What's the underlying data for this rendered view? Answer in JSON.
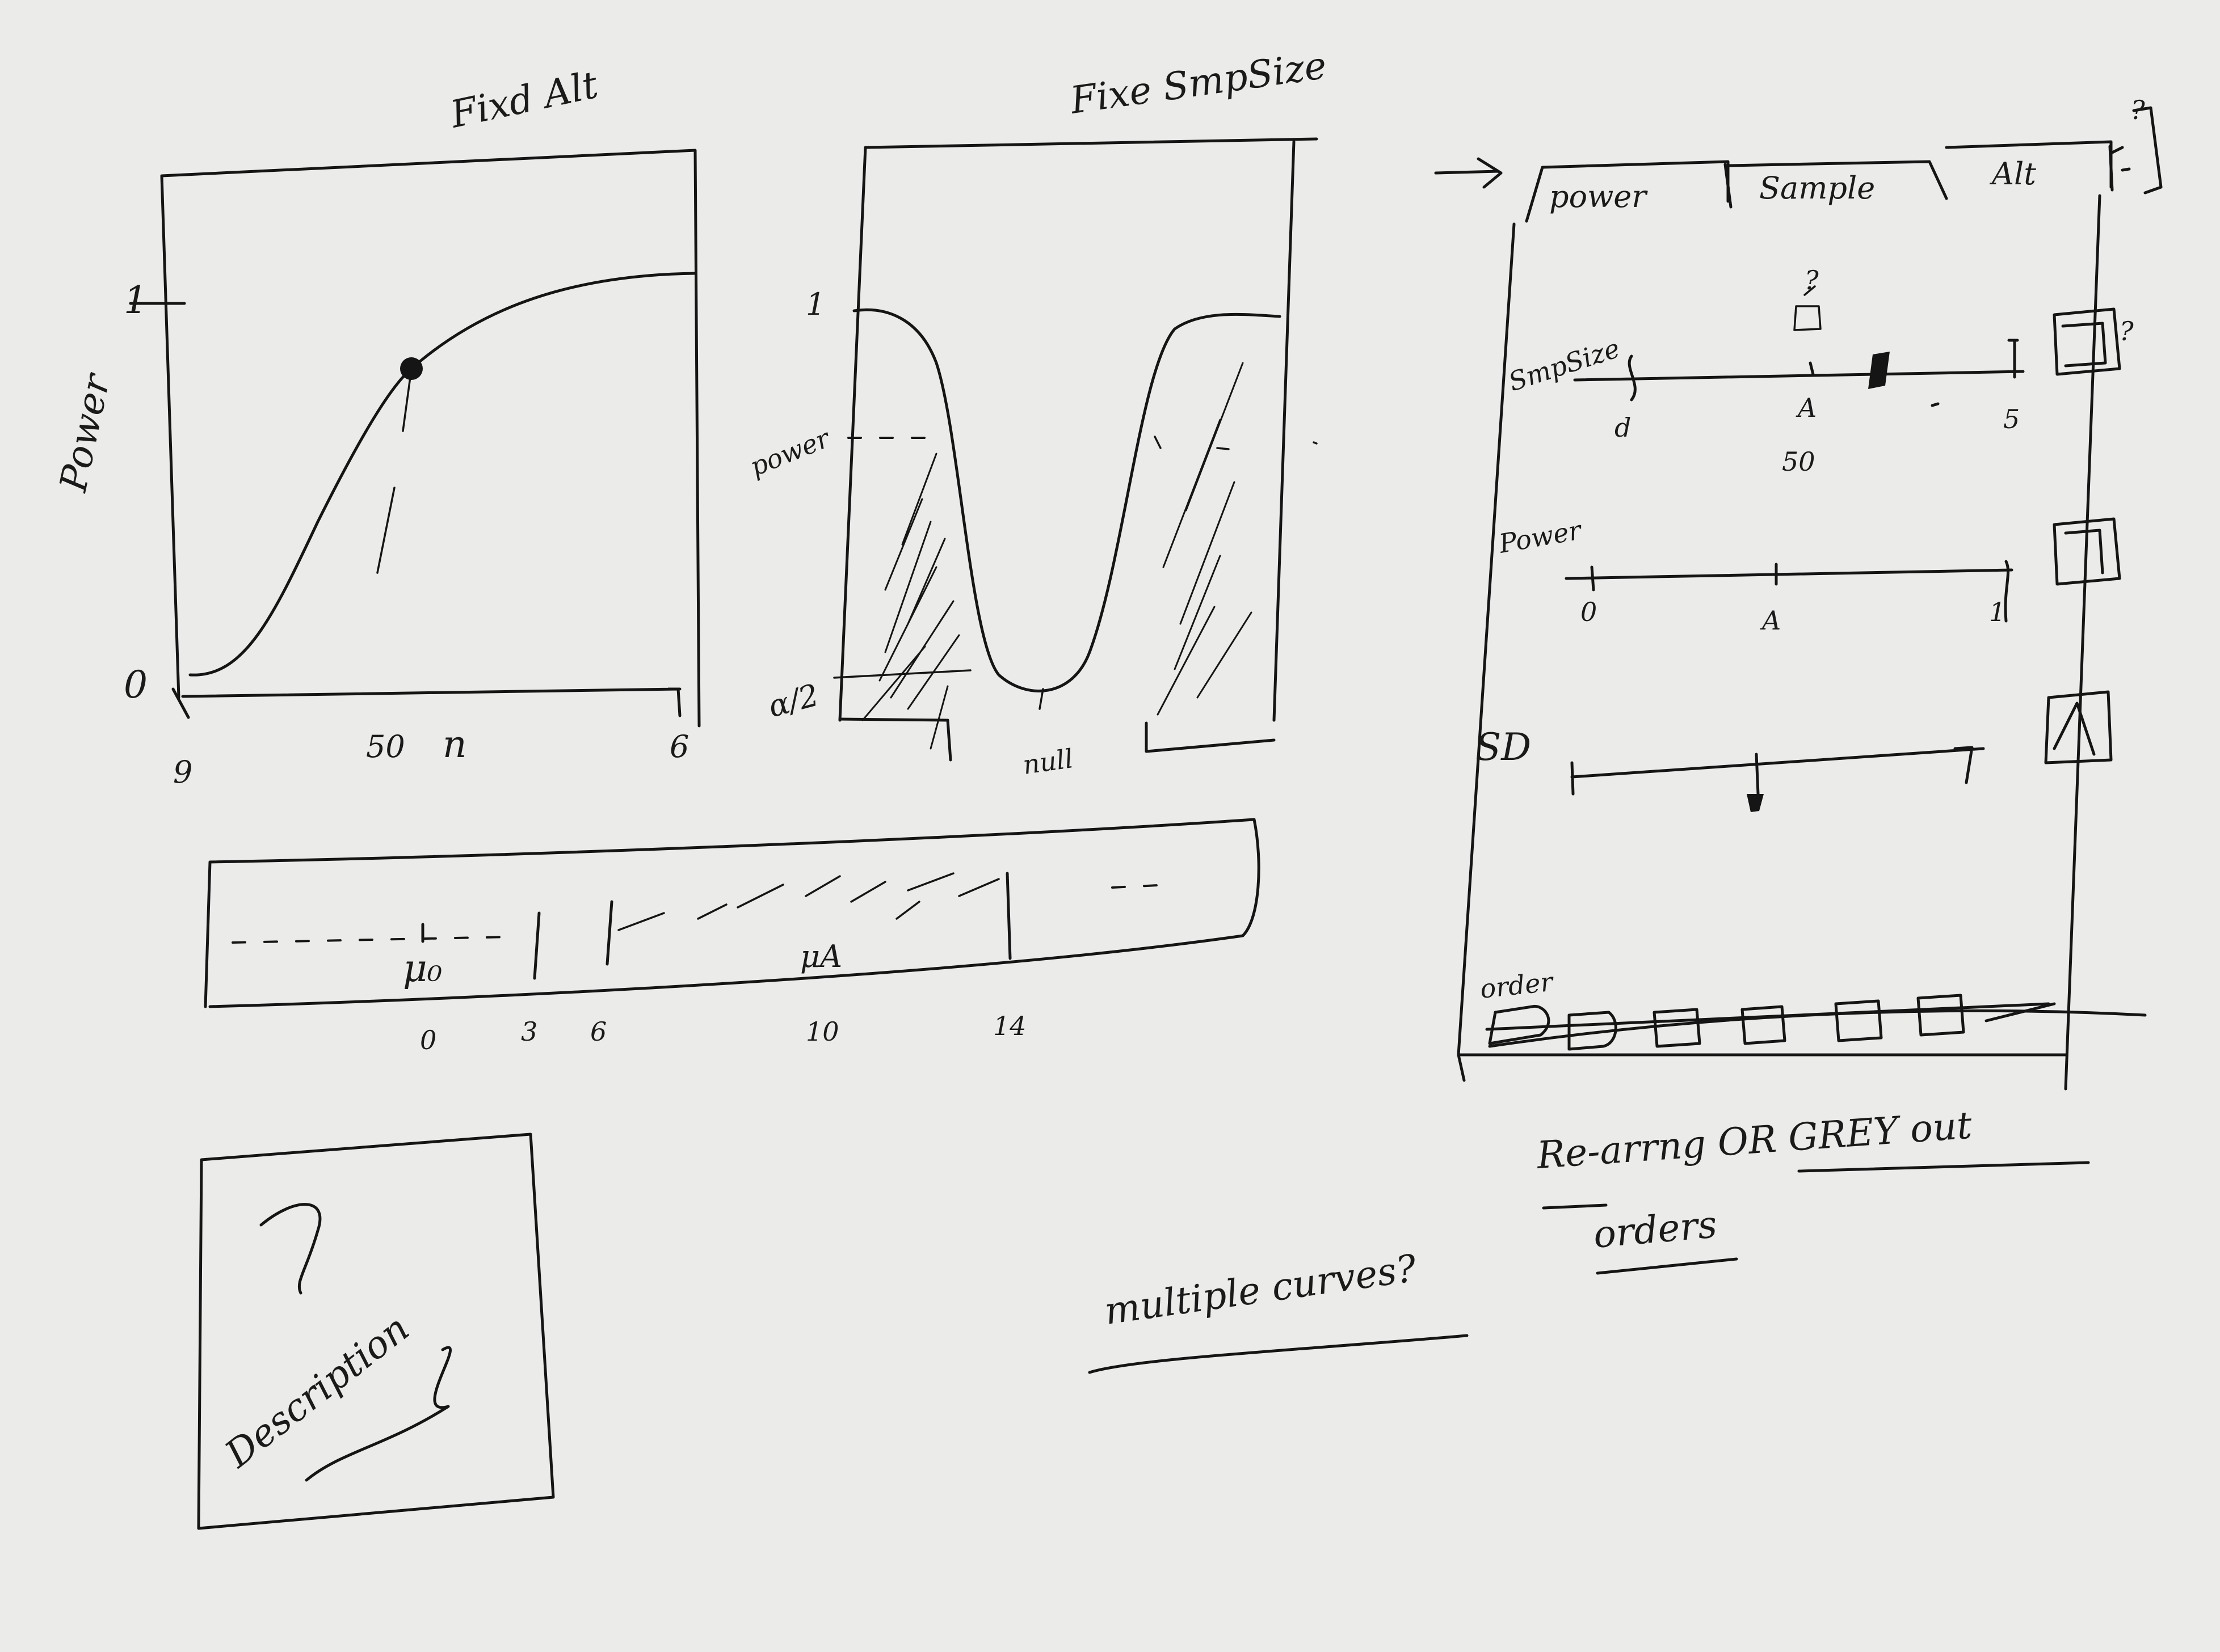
{
  "power_plot": {
    "title": "Fixd Alt",
    "y_label": "Power",
    "y_top": "1",
    "y_bottom": "0",
    "x_min": "9",
    "x_mid": "50",
    "x_var": "n",
    "x_max": "6"
  },
  "sample_plot": {
    "title": "Fixe SmpSize",
    "y_top": "1",
    "y_power": "power",
    "y_alpha": "α/2",
    "x_label": "null"
  },
  "means_strip": {
    "mu0": "μ₀",
    "muA": "μA",
    "ticks": [
      "0",
      "3",
      "6",
      "10",
      "14"
    ]
  },
  "description_box": {
    "label": "Description",
    "question_mark": "?"
  },
  "panel": {
    "arrow": "→",
    "tabs": [
      "power",
      "Sample",
      "Alt"
    ],
    "corner_note": "?",
    "samplesize_label": "SmpSize",
    "samplesize_min": "d",
    "samplesize_mid": "A",
    "samplesize_value": "50",
    "samplesize_max": "5",
    "samplesize_marker": "?",
    "samplesize_checkbox_note": "?",
    "power_label": "Power",
    "power_min": "0",
    "power_mid": "A",
    "power_max": "1",
    "third_label": "SD",
    "order_label": "order"
  },
  "notes": {
    "rearrange": "Re-arrng OR GREY out",
    "order": "orders",
    "multiple": "multiple curves?"
  }
}
